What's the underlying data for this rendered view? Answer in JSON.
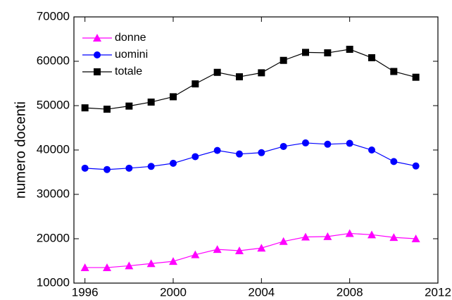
{
  "chart_data": {
    "type": "line",
    "y_label": "numero docenti",
    "x": [
      1996,
      1997,
      1998,
      1999,
      2000,
      2001,
      2002,
      2003,
      2004,
      2005,
      2006,
      2007,
      2008,
      2009,
      2010,
      2011
    ],
    "series": [
      {
        "name": "donne",
        "color": "#ff00ff",
        "marker": "triangle",
        "values": [
          13500,
          13500,
          13900,
          14400,
          14900,
          16400,
          17600,
          17300,
          17900,
          19400,
          20400,
          20500,
          21200,
          20900,
          20300,
          20000
        ]
      },
      {
        "name": "uomini",
        "color": "#0000ff",
        "marker": "circle",
        "values": [
          35900,
          35600,
          35900,
          36300,
          37000,
          38500,
          39900,
          39100,
          39400,
          40800,
          41600,
          41300,
          41500,
          40000,
          37400,
          36400
        ]
      },
      {
        "name": "totale",
        "color": "#000000",
        "marker": "square",
        "values": [
          49500,
          49200,
          49900,
          50800,
          52000,
          54900,
          57500,
          56500,
          57400,
          60200,
          62000,
          61900,
          62700,
          60800,
          57700,
          56400
        ]
      }
    ],
    "xlim": [
      1995.5,
      2012
    ],
    "xticks": [
      1996,
      2000,
      2004,
      2008,
      2012
    ],
    "ylim": [
      10000,
      70000
    ],
    "yticks": [
      10000,
      20000,
      30000,
      40000,
      50000,
      60000,
      70000
    ],
    "legend": "upper left",
    "grid": false
  }
}
